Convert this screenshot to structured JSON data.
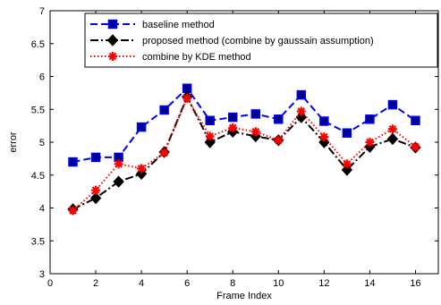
{
  "chart_data": {
    "type": "line",
    "xlabel": "Frame Index",
    "ylabel": "error",
    "xlim": [
      0,
      17
    ],
    "ylim": [
      3,
      7
    ],
    "xticks": [
      0,
      2,
      4,
      6,
      8,
      10,
      12,
      14,
      16
    ],
    "yticks": [
      3,
      3.5,
      4,
      4.5,
      5,
      5.5,
      6,
      6.5,
      7
    ],
    "grid": false,
    "legend_position": "top-right",
    "x": [
      1,
      2,
      3,
      4,
      5,
      6,
      7,
      8,
      9,
      10,
      11,
      12,
      13,
      14,
      15,
      16
    ],
    "series": [
      {
        "name": "baseline method",
        "color": "#0000ff",
        "marker": "square",
        "marker_fill": "#00008b",
        "line_style": "dashed",
        "values": [
          4.7,
          4.77,
          4.77,
          5.23,
          5.49,
          5.82,
          5.33,
          5.38,
          5.43,
          5.35,
          5.72,
          5.32,
          5.14,
          5.35,
          5.57,
          5.33
        ]
      },
      {
        "name": "proposed method (combine by gaussain assumption)",
        "color": "#000000",
        "marker": "diamond",
        "marker_fill": "#000000",
        "line_style": "dashdot",
        "values": [
          3.98,
          4.15,
          4.4,
          4.52,
          4.85,
          5.69,
          5.0,
          5.16,
          5.09,
          5.03,
          5.38,
          5.0,
          4.58,
          4.93,
          5.05,
          4.92
        ]
      },
      {
        "name": "combine by KDE method",
        "color": "#ff0000",
        "marker": "star",
        "marker_fill": "#ff0000",
        "line_style": "dotted",
        "values": [
          3.96,
          4.27,
          4.67,
          4.6,
          4.84,
          5.67,
          5.09,
          5.22,
          5.16,
          5.03,
          5.47,
          5.08,
          4.67,
          5.0,
          5.2,
          4.93
        ]
      }
    ]
  }
}
